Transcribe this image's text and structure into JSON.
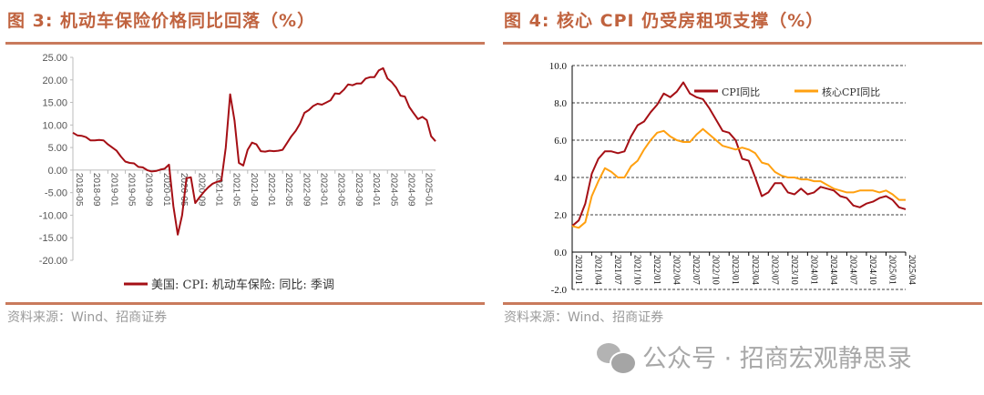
{
  "left": {
    "title": "图 3:  机动车保险价格同比回落（%）",
    "source": "资料来源：Wind、招商证券"
  },
  "right": {
    "title": "图 4:  核心 CPI 仍受房租项支撑（%）",
    "source": "资料来源：Wind、招商证券"
  },
  "watermark": {
    "text": "公众号 · 招商宏观静思录",
    "icon": "wechat-icon"
  },
  "chart_data": [
    {
      "type": "line",
      "title": "机动车保险价格同比回落（%）",
      "ylim": [
        -20,
        25
      ],
      "yticks": [
        "25.00",
        "20.00",
        "15.00",
        "10.00",
        "5.00",
        "0.00",
        "-5.00",
        "-10.00",
        "-15.00",
        "-20.00"
      ],
      "ytick_values": [
        25,
        20,
        15,
        10,
        5,
        0,
        -5,
        -10,
        -15,
        -20
      ],
      "xticks": [
        "2018-05",
        "2018-09",
        "2019-01",
        "2019-05",
        "2019-09",
        "2020-01",
        "2020-05",
        "2020-09",
        "2021-01",
        "2021-05",
        "2021-09",
        "2022-01",
        "2022-05",
        "2022-09",
        "2023-01",
        "2023-05",
        "2023-09",
        "2024-01",
        "2024-05",
        "2024-09",
        "2025-01"
      ],
      "xtick_every": 4,
      "legend_position": "bottom",
      "color": "#a50f15",
      "series": [
        {
          "name": "美国: CPI: 机动车保险: 同比: 季调",
          "values": [
            8.3,
            7.7,
            7.6,
            7.3,
            6.6,
            6.6,
            6.7,
            6.6,
            5.7,
            5.0,
            4.3,
            3.0,
            1.9,
            1.6,
            1.5,
            0.7,
            0.6,
            0.0,
            -0.3,
            -0.2,
            0.1,
            0.3,
            1.2,
            -8.0,
            -14.3,
            -10.0,
            -1.8,
            -1.6,
            -7.3,
            -6.0,
            -4.8,
            -3.8,
            -3.0,
            -2.6,
            -2.3,
            5.0,
            16.8,
            11.0,
            1.6,
            1.0,
            4.5,
            6.1,
            5.7,
            4.2,
            4.1,
            4.3,
            4.2,
            4.3,
            4.5,
            6.0,
            7.5,
            8.7,
            10.3,
            12.7,
            13.3,
            14.2,
            14.7,
            14.5,
            15.0,
            15.5,
            17.0,
            16.9,
            17.8,
            19.0,
            18.8,
            19.2,
            19.2,
            20.3,
            20.6,
            20.6,
            22.1,
            22.6,
            20.3,
            19.5,
            18.3,
            16.5,
            16.3,
            14.0,
            12.6,
            11.3,
            11.8,
            11.1,
            7.5,
            6.4
          ]
        }
      ]
    },
    {
      "type": "line",
      "title": "核心 CPI 仍受房租项支撑（%）",
      "ylim": [
        -2,
        10
      ],
      "grid": true,
      "yticks": [
        "10.0",
        "8.0",
        "6.0",
        "4.0",
        "2.0",
        "0.0",
        "-2.0"
      ],
      "ytick_values": [
        10,
        8,
        6,
        4,
        2,
        0,
        -2
      ],
      "xticks": [
        "2021/01",
        "2021/04",
        "2021/07",
        "2021/10",
        "2022/01",
        "2022/04",
        "2022/07",
        "2022/10",
        "2023/01",
        "2023/04",
        "2023/07",
        "2023/10",
        "2024/01",
        "2024/04",
        "2024/07",
        "2024/10",
        "2025/01",
        "2025/04"
      ],
      "xtick_every": 3,
      "legend_position": "top-right",
      "series": [
        {
          "name": "CPI同比",
          "color": "#a50f15",
          "values": [
            1.4,
            1.7,
            2.6,
            4.2,
            5.0,
            5.4,
            5.4,
            5.3,
            5.4,
            6.2,
            6.8,
            7.0,
            7.5,
            7.9,
            8.5,
            8.3,
            8.6,
            9.1,
            8.5,
            8.3,
            8.2,
            7.7,
            7.1,
            6.5,
            6.4,
            6.0,
            5.0,
            4.9,
            4.0,
            3.0,
            3.2,
            3.7,
            3.7,
            3.2,
            3.1,
            3.4,
            3.1,
            3.2,
            3.5,
            3.4,
            3.3,
            3.0,
            2.9,
            2.5,
            2.4,
            2.6,
            2.7,
            2.9,
            3.0,
            2.8,
            2.4,
            2.3
          ]
        },
        {
          "name": "核心CPI同比",
          "color": "#ffa010",
          "values": [
            1.4,
            1.3,
            1.6,
            3.0,
            3.8,
            4.5,
            4.3,
            4.0,
            4.0,
            4.6,
            4.9,
            5.5,
            6.0,
            6.4,
            6.5,
            6.2,
            6.0,
            5.9,
            5.9,
            6.3,
            6.6,
            6.3,
            6.0,
            5.7,
            5.6,
            5.5,
            5.6,
            5.5,
            5.3,
            4.8,
            4.7,
            4.3,
            4.1,
            4.0,
            4.0,
            3.9,
            3.9,
            3.8,
            3.8,
            3.6,
            3.4,
            3.3,
            3.2,
            3.2,
            3.3,
            3.3,
            3.3,
            3.2,
            3.3,
            3.1,
            2.8,
            2.8
          ]
        }
      ]
    }
  ]
}
